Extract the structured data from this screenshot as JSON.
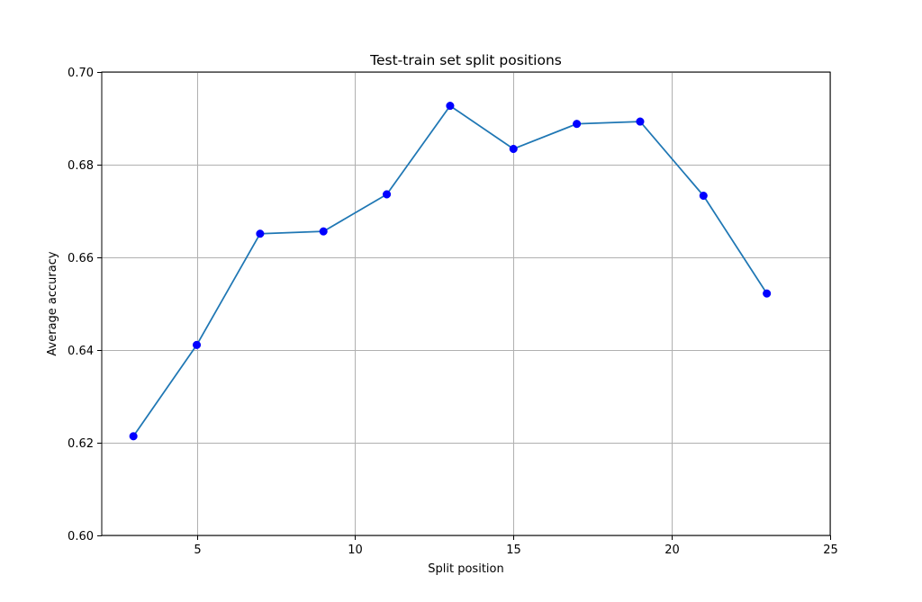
{
  "chart_data": {
    "type": "line",
    "title": "Test-train set split positions",
    "xlabel": "Split position",
    "ylabel": "Average accuracy",
    "xlim": [
      2,
      25
    ],
    "ylim": [
      0.6,
      0.7
    ],
    "xticks": [
      5,
      10,
      15,
      20,
      25
    ],
    "xtick_labels": [
      "5",
      "10",
      "15",
      "20",
      "25"
    ],
    "yticks": [
      0.6,
      0.62,
      0.64,
      0.66,
      0.68,
      0.7
    ],
    "ytick_labels": [
      "0.60",
      "0.62",
      "0.64",
      "0.66",
      "0.68",
      "0.70"
    ],
    "grid": true,
    "series": [
      {
        "x": [
          3,
          5,
          7,
          9,
          11,
          13,
          15,
          17,
          19,
          21,
          23
        ],
        "y": [
          0.6214,
          0.6411,
          0.6651,
          0.6656,
          0.6736,
          0.6927,
          0.6834,
          0.6888,
          0.6893,
          0.6733,
          0.6522
        ],
        "line_color": "#1f77b4",
        "marker_color": "#0000ff"
      }
    ]
  }
}
